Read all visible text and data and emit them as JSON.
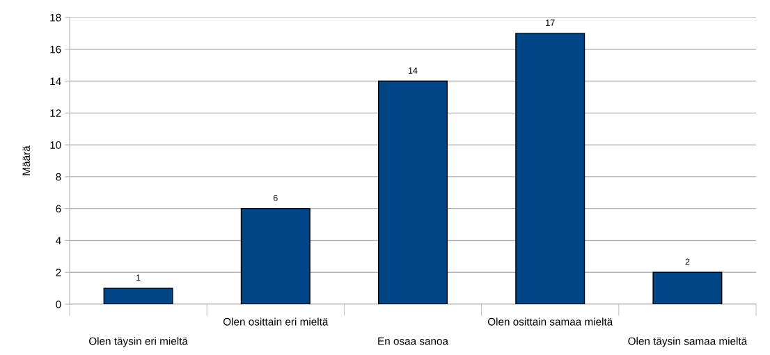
{
  "chart_data": {
    "type": "bar",
    "ylabel": "Määrä",
    "categories": [
      "Olen täysin eri mieltä",
      "Olen osittain eri mieltä",
      "En osaa sanoa",
      "Olen osittain samaa mieltä",
      "Olen täysin samaa mieltä"
    ],
    "values": [
      1,
      6,
      14,
      17,
      2
    ],
    "color": "#004586",
    "ylim": [
      0,
      18
    ],
    "yticks": [
      0,
      2,
      4,
      6,
      8,
      10,
      12,
      14,
      16,
      18
    ],
    "grid": "y",
    "data_labels": true,
    "legend": false
  }
}
